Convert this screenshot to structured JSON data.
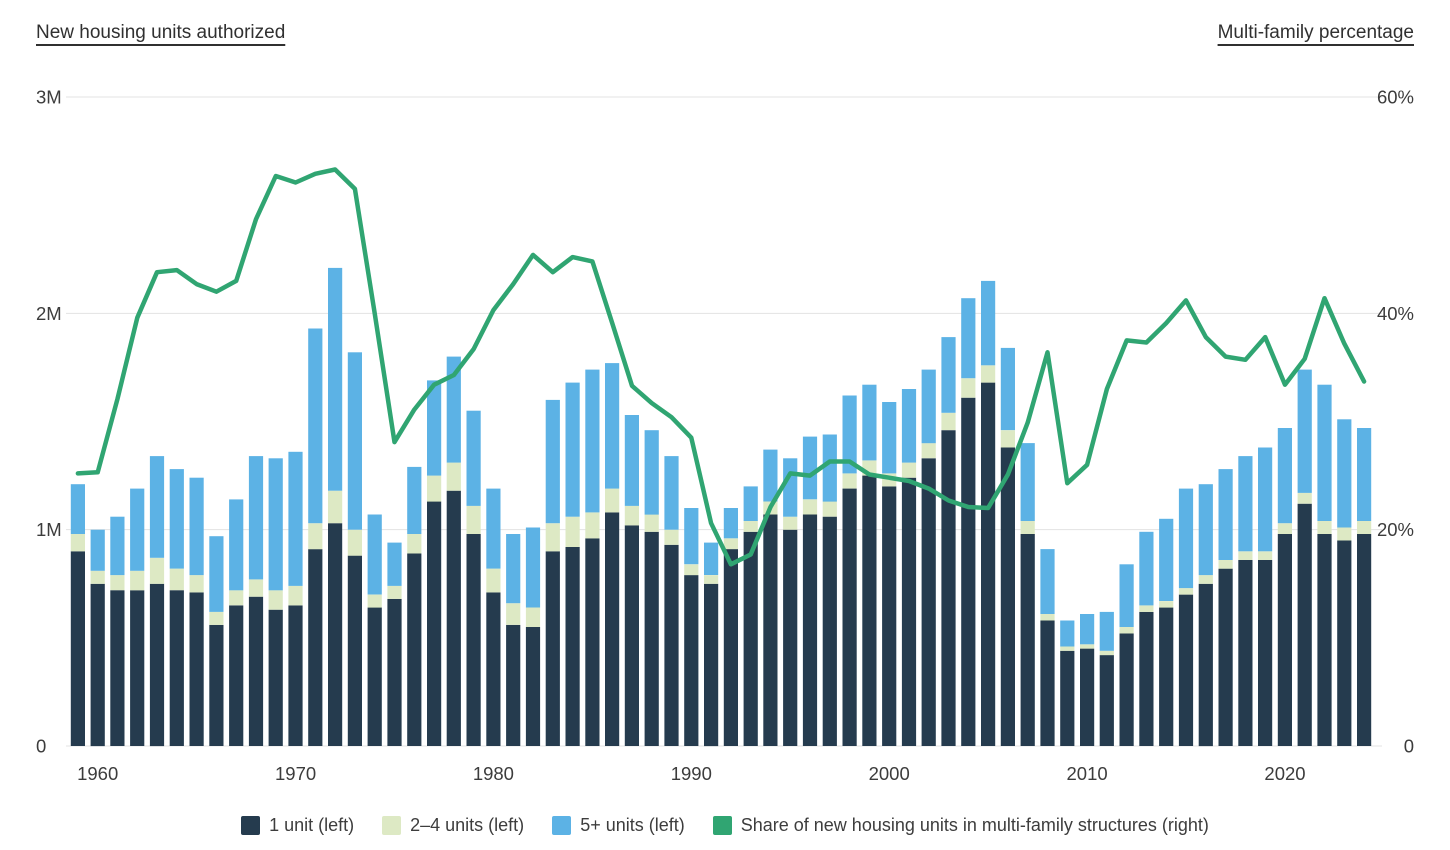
{
  "titles": {
    "left": "New housing units authorized",
    "right": "Multi-family percentage"
  },
  "legend": [
    {
      "label": "1 unit (left)",
      "color": "#253b4e"
    },
    {
      "label": "2–4 units (left)",
      "color": "#dde9c4"
    },
    {
      "label": "5+ units (left)",
      "color": "#5cb2e5"
    },
    {
      "label": "Share of new housing units in multi-family structures (right)",
      "color": "#30a572"
    }
  ],
  "chart_data": {
    "type": "bar",
    "subtype": "stacked-bars-with-line",
    "title": "",
    "grid_color": "#e3e3e3",
    "text_color": "#3c3c3c",
    "left_axis": {
      "title": "New housing units authorized",
      "unit": "millions of units",
      "min": 0,
      "max": 3
    },
    "right_axis": {
      "title": "Multi-family percentage",
      "unit": "percent",
      "min": 0,
      "max": 60
    },
    "grid_ticks": [
      {
        "value": 0,
        "left_label": "0",
        "right_label": "0"
      },
      {
        "value": 1,
        "left_label": "1M",
        "right_label": "20%"
      },
      {
        "value": 2,
        "left_label": "2M",
        "right_label": "40%"
      },
      {
        "value": 3,
        "left_label": "3M",
        "right_label": "60%"
      }
    ],
    "x_axis_labels": [
      1960,
      1970,
      1980,
      1990,
      2000,
      2010,
      2020
    ],
    "years": [
      1959,
      1960,
      1961,
      1962,
      1963,
      1964,
      1965,
      1966,
      1967,
      1968,
      1969,
      1970,
      1971,
      1972,
      1973,
      1974,
      1975,
      1976,
      1977,
      1978,
      1979,
      1980,
      1981,
      1982,
      1983,
      1984,
      1985,
      1986,
      1987,
      1988,
      1989,
      1990,
      1991,
      1992,
      1993,
      1994,
      1995,
      1996,
      1997,
      1998,
      1999,
      2000,
      2001,
      2002,
      2003,
      2004,
      2005,
      2006,
      2007,
      2008,
      2009,
      2010,
      2011,
      2012,
      2013,
      2014,
      2015,
      2016,
      2017,
      2018,
      2019,
      2020,
      2021,
      2022,
      2023,
      2024
    ],
    "series": [
      {
        "name": "1 unit (left)",
        "color": "#253b4e",
        "values_millions": [
          0.9,
          0.75,
          0.72,
          0.72,
          0.75,
          0.72,
          0.71,
          0.56,
          0.65,
          0.69,
          0.63,
          0.65,
          0.91,
          1.03,
          0.88,
          0.64,
          0.68,
          0.89,
          1.13,
          1.18,
          0.98,
          0.71,
          0.56,
          0.55,
          0.9,
          0.92,
          0.96,
          1.08,
          1.02,
          0.99,
          0.93,
          0.79,
          0.75,
          0.91,
          0.99,
          1.07,
          1.0,
          1.07,
          1.06,
          1.19,
          1.25,
          1.2,
          1.24,
          1.33,
          1.46,
          1.61,
          1.68,
          1.38,
          0.98,
          0.58,
          0.44,
          0.45,
          0.42,
          0.52,
          0.62,
          0.64,
          0.7,
          0.75,
          0.82,
          0.86,
          0.86,
          0.98,
          1.12,
          0.98,
          0.95,
          0.98
        ]
      },
      {
        "name": "2–4 units (left)",
        "color": "#dde9c4",
        "values_millions": [
          0.08,
          0.06,
          0.07,
          0.09,
          0.12,
          0.1,
          0.08,
          0.06,
          0.07,
          0.08,
          0.09,
          0.09,
          0.12,
          0.15,
          0.12,
          0.06,
          0.06,
          0.09,
          0.12,
          0.13,
          0.13,
          0.11,
          0.1,
          0.09,
          0.13,
          0.14,
          0.12,
          0.11,
          0.09,
          0.08,
          0.07,
          0.05,
          0.04,
          0.05,
          0.05,
          0.06,
          0.06,
          0.07,
          0.07,
          0.07,
          0.07,
          0.06,
          0.07,
          0.07,
          0.08,
          0.09,
          0.08,
          0.08,
          0.06,
          0.03,
          0.02,
          0.02,
          0.02,
          0.03,
          0.03,
          0.03,
          0.03,
          0.04,
          0.04,
          0.04,
          0.04,
          0.05,
          0.05,
          0.06,
          0.06,
          0.06
        ]
      },
      {
        "name": "5+ units (left)",
        "color": "#5cb2e5",
        "values_millions": [
          0.23,
          0.19,
          0.27,
          0.38,
          0.47,
          0.46,
          0.45,
          0.35,
          0.42,
          0.57,
          0.61,
          0.62,
          0.9,
          1.03,
          0.82,
          0.37,
          0.2,
          0.31,
          0.44,
          0.49,
          0.44,
          0.37,
          0.32,
          0.37,
          0.57,
          0.62,
          0.66,
          0.58,
          0.42,
          0.39,
          0.34,
          0.26,
          0.15,
          0.14,
          0.16,
          0.24,
          0.27,
          0.29,
          0.31,
          0.36,
          0.35,
          0.33,
          0.34,
          0.34,
          0.35,
          0.37,
          0.39,
          0.38,
          0.36,
          0.3,
          0.12,
          0.14,
          0.18,
          0.29,
          0.34,
          0.38,
          0.46,
          0.42,
          0.42,
          0.44,
          0.48,
          0.44,
          0.57,
          0.63,
          0.5,
          0.43
        ]
      }
    ],
    "line": {
      "name": "Share of new housing units in multi-family structures (right)",
      "color": "#30a572",
      "values_percent": [
        25.2,
        25.3,
        32.1,
        39.6,
        43.8,
        44.0,
        42.7,
        42.0,
        43.0,
        48.7,
        52.7,
        52.1,
        52.9,
        53.3,
        51.5,
        40.0,
        28.1,
        31.1,
        33.4,
        34.3,
        36.7,
        40.3,
        42.7,
        45.4,
        43.8,
        45.2,
        44.8,
        39.1,
        33.3,
        31.7,
        30.4,
        28.5,
        20.6,
        16.8,
        17.7,
        22.1,
        25.2,
        25.0,
        26.3,
        26.3,
        25.1,
        24.8,
        24.5,
        23.8,
        22.7,
        22.1,
        22.0,
        25.1,
        29.9,
        36.4,
        24.3,
        26.0,
        33.0,
        37.5,
        37.3,
        39.1,
        41.2,
        37.8,
        36.0,
        35.7,
        37.8,
        33.4,
        35.8,
        41.4,
        37.2,
        33.7
      ]
    }
  }
}
